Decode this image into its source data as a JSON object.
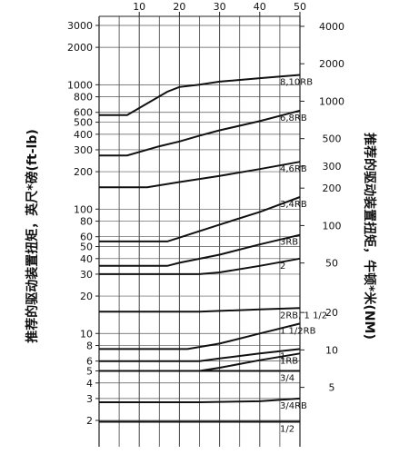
{
  "chart_data": {
    "type": "line",
    "title": "",
    "xlabel": "",
    "xlim": [
      0,
      50
    ],
    "x_ticks": [
      10,
      20,
      30,
      40,
      50
    ],
    "left_axis": {
      "label": "推荐的驱动装置扭矩，英尺*磅(ft-lb)",
      "scale": "log",
      "ylim": [
        1.5,
        3000
      ],
      "ticks": [
        3000,
        2000,
        1000,
        800,
        600,
        500,
        400,
        300,
        200,
        100,
        80,
        60,
        50,
        40,
        30,
        20,
        10,
        8,
        6,
        5,
        4,
        3,
        2
      ]
    },
    "right_axis": {
      "label": "推荐的驱动装置扭矩，牛顿*米(NM)",
      "scale": "log",
      "ticks": [
        4000,
        2000,
        1000,
        500,
        300,
        200,
        100,
        50,
        20,
        10,
        5
      ]
    },
    "grid": true,
    "series": [
      {
        "name": "8,10RB",
        "x": [
          0,
          7,
          17,
          20,
          25,
          30,
          40,
          50
        ],
        "y": [
          570,
          570,
          880,
          960,
          1000,
          1060,
          1130,
          1200
        ]
      },
      {
        "name": "6,8RB",
        "x": [
          0,
          7,
          15,
          20,
          25,
          30,
          40,
          50
        ],
        "y": [
          270,
          270,
          320,
          350,
          390,
          430,
          510,
          620
        ]
      },
      {
        "name": "4,6RB",
        "x": [
          0,
          12,
          20,
          30,
          40,
          50
        ],
        "y": [
          150,
          150,
          165,
          185,
          210,
          240
        ]
      },
      {
        "name": "3,4RB",
        "x": [
          0,
          17,
          20,
          30,
          40,
          50
        ],
        "y": [
          55,
          55,
          59,
          75,
          95,
          125
        ]
      },
      {
        "name": "3RB",
        "x": [
          0,
          17,
          20,
          30,
          40,
          50
        ],
        "y": [
          35,
          35,
          37,
          43,
          52,
          62
        ]
      },
      {
        "name": "2",
        "x": [
          0,
          25,
          30,
          40,
          50
        ],
        "y": [
          30,
          30,
          31,
          35,
          40
        ]
      },
      {
        "name": "2RB, 1 1/2",
        "x": [
          0,
          25,
          30,
          40,
          50
        ],
        "y": [
          15,
          15,
          15.2,
          15.6,
          16
        ]
      },
      {
        "name": "1 1/2RB",
        "x": [
          0,
          22,
          30,
          40,
          50
        ],
        "y": [
          7.5,
          7.5,
          8.3,
          10,
          12
        ]
      },
      {
        "name": "1",
        "x": [
          0,
          25,
          30,
          40,
          50
        ],
        "y": [
          6,
          6,
          6.3,
          6.9,
          7.5
        ]
      },
      {
        "name": "1RB",
        "x": [
          0,
          25,
          30,
          40,
          50
        ],
        "y": [
          5,
          5,
          5.3,
          6.1,
          6.9
        ]
      },
      {
        "name": "3/4",
        "x": [
          0,
          50
        ],
        "y": [
          5,
          5
        ]
      },
      {
        "name": "3/4RB",
        "x": [
          0,
          25,
          40,
          50
        ],
        "y": [
          2.8,
          2.8,
          2.85,
          3
        ]
      },
      {
        "name": "1/2",
        "x": [
          0,
          50
        ],
        "y": [
          1.95,
          1.95
        ]
      }
    ]
  }
}
